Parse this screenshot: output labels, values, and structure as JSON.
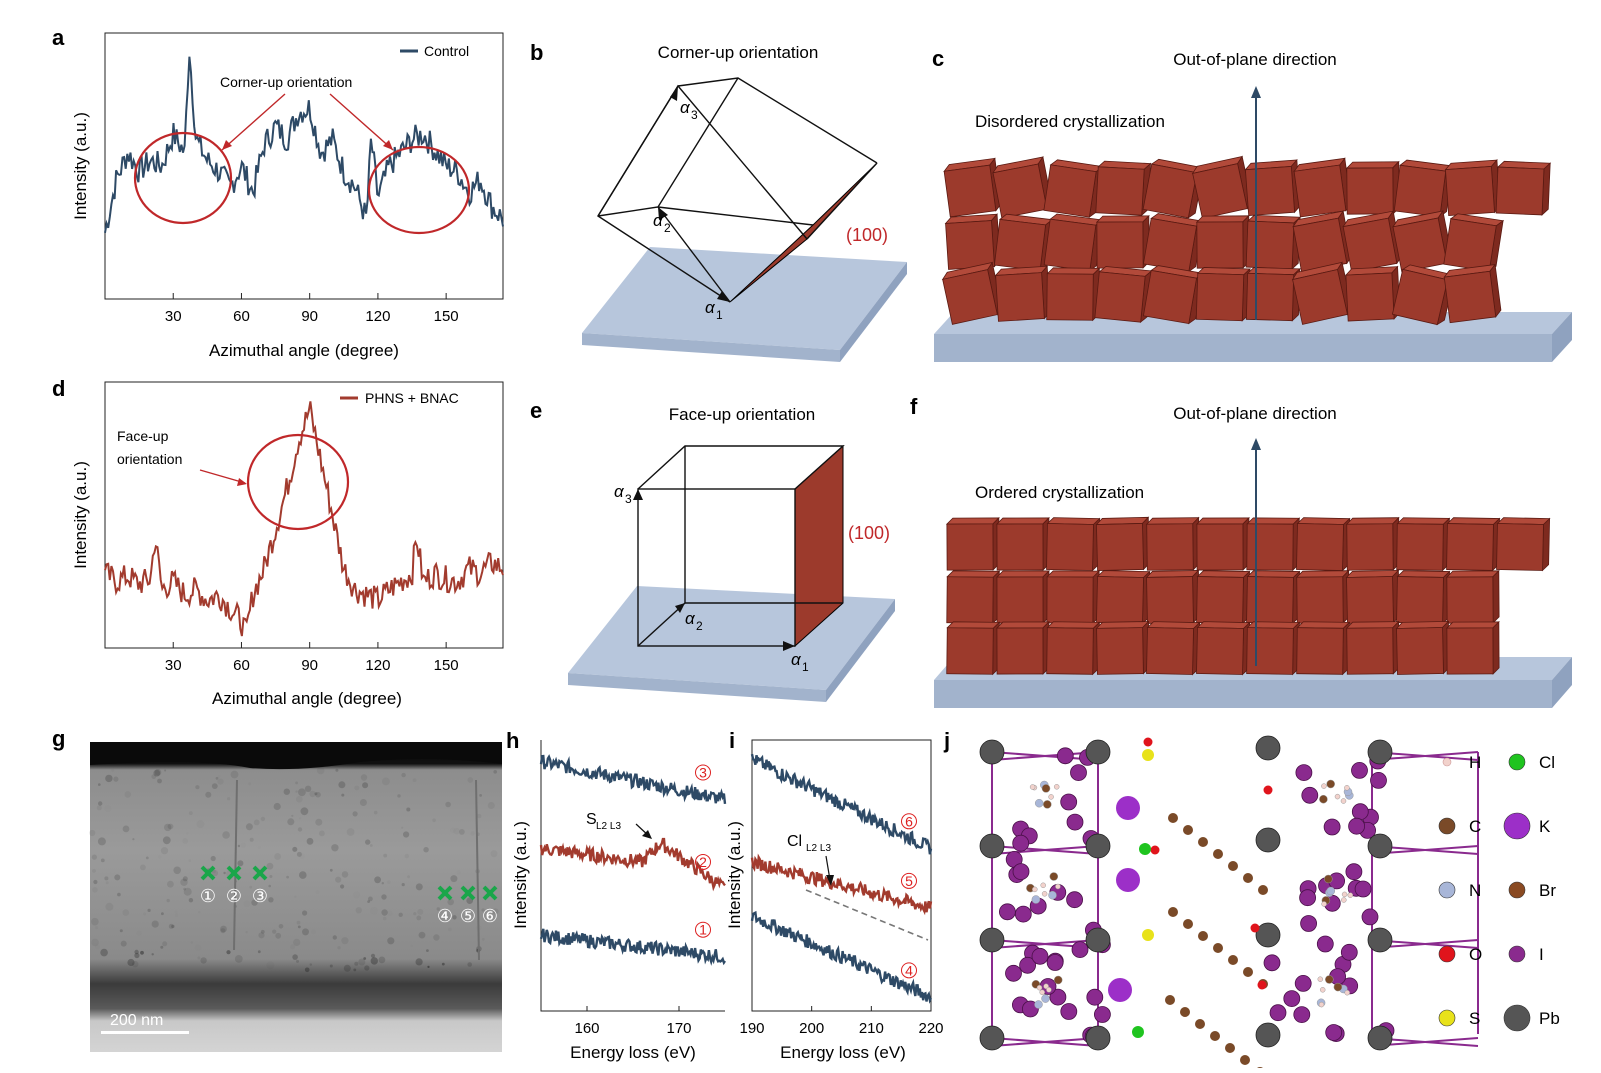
{
  "panels": {
    "a": "a",
    "b": "b",
    "c": "c",
    "d": "d",
    "e": "e",
    "f": "f",
    "g": "g",
    "h": "h",
    "i": "i",
    "j": "j"
  },
  "colors": {
    "control": "#2e4a66",
    "treated": "#a23b2e",
    "crystal": "#9c3a2c",
    "substrate": "#b7c6dc",
    "green_marker": "#1aa64a",
    "red_circle": "#c0282a"
  },
  "chart_data": [
    {
      "id": "a",
      "type": "line",
      "xlabel": "Azimuthal angle (degree)",
      "ylabel": "Intensity (a.u.)",
      "xlim": [
        0,
        175
      ],
      "xticks": [
        30,
        60,
        90,
        120,
        150
      ],
      "series": [
        {
          "name": "Control",
          "color": "#2e4a66",
          "x": [
            0,
            5,
            10,
            15,
            20,
            25,
            30,
            35,
            37,
            40,
            45,
            50,
            55,
            60,
            65,
            70,
            75,
            80,
            85,
            90,
            95,
            100,
            105,
            110,
            115,
            117,
            120,
            125,
            130,
            135,
            140,
            145,
            150,
            155,
            160,
            165,
            170,
            175
          ],
          "y": [
            0.25,
            0.45,
            0.55,
            0.48,
            0.52,
            0.5,
            0.62,
            0.55,
            0.95,
            0.6,
            0.52,
            0.48,
            0.42,
            0.5,
            0.4,
            0.58,
            0.65,
            0.6,
            0.7,
            0.72,
            0.55,
            0.6,
            0.48,
            0.42,
            0.3,
            0.6,
            0.38,
            0.5,
            0.55,
            0.6,
            0.62,
            0.56,
            0.5,
            0.48,
            0.4,
            0.45,
            0.35,
            0.3
          ]
        }
      ],
      "annotations": [
        "Corner-up orientation"
      ]
    },
    {
      "id": "d",
      "type": "line",
      "xlabel": "Azimuthal angle (degree)",
      "ylabel": "Intensity (a.u.)",
      "xlim": [
        0,
        175
      ],
      "xticks": [
        30,
        60,
        90,
        120,
        150
      ],
      "series": [
        {
          "name": "PHNS + BNAC",
          "color": "#a23b2e",
          "x": [
            0,
            5,
            10,
            15,
            20,
            22,
            25,
            30,
            35,
            40,
            45,
            50,
            55,
            60,
            62,
            65,
            70,
            75,
            80,
            85,
            88,
            90,
            92,
            95,
            100,
            105,
            110,
            115,
            120,
            125,
            130,
            135,
            137,
            140,
            145,
            150,
            155,
            160,
            165,
            170,
            175
          ],
          "y": [
            0.28,
            0.25,
            0.27,
            0.24,
            0.26,
            0.42,
            0.22,
            0.25,
            0.2,
            0.22,
            0.18,
            0.2,
            0.15,
            0.1,
            0.05,
            0.2,
            0.3,
            0.45,
            0.6,
            0.78,
            0.85,
            0.9,
            0.82,
            0.7,
            0.5,
            0.3,
            0.22,
            0.2,
            0.18,
            0.22,
            0.25,
            0.28,
            0.42,
            0.25,
            0.28,
            0.26,
            0.25,
            0.3,
            0.28,
            0.32,
            0.3
          ]
        }
      ],
      "annotations": [
        "Face-up",
        "orientation"
      ]
    },
    {
      "id": "h",
      "type": "line",
      "xlabel": "Energy loss (eV)",
      "ylabel": "Intensity (a.u.)",
      "xlim": [
        155,
        175
      ],
      "xticks": [
        160,
        170
      ],
      "series": [
        {
          "name": "③",
          "x": [
            155,
            175
          ],
          "y": [
            0.92,
            0.78
          ]
        },
        {
          "name": "②",
          "x": [
            155,
            166,
            168,
            175
          ],
          "y": [
            0.6,
            0.55,
            0.62,
            0.45
          ]
        },
        {
          "name": "①",
          "x": [
            155,
            175
          ],
          "y": [
            0.28,
            0.2
          ]
        }
      ],
      "annotations": [
        "S",
        "L2 L3"
      ]
    },
    {
      "id": "i",
      "type": "line",
      "xlabel": "Energy loss (eV)",
      "ylabel": "Intensity (a.u.)",
      "xlim": [
        190,
        220
      ],
      "xticks": [
        190,
        200,
        210,
        220
      ],
      "series": [
        {
          "name": "⑥",
          "x": [
            190,
            220
          ],
          "y": [
            0.93,
            0.6
          ]
        },
        {
          "name": "⑤",
          "x": [
            190,
            220
          ],
          "y": [
            0.55,
            0.38
          ]
        },
        {
          "name": "④",
          "x": [
            190,
            220
          ],
          "y": [
            0.35,
            0.05
          ]
        }
      ],
      "annotations": [
        "Cl",
        "L2 L3"
      ]
    }
  ],
  "panel_b": {
    "title": "Corner-up orientation",
    "plane": "(100)",
    "a1": "α",
    "a1_sub": "1",
    "a2": "α",
    "a2_sub": "2",
    "a3": "α",
    "a3_sub": "3"
  },
  "panel_c": {
    "title": "Out-of-plane direction",
    "label": "Disordered crystallization"
  },
  "panel_e": {
    "title": "Face-up orientation",
    "plane": "(100)",
    "a1": "α",
    "a1_sub": "1",
    "a2": "α",
    "a2_sub": "2",
    "a3": "α",
    "a3_sub": "3"
  },
  "panel_f": {
    "title": "Out-of-plane direction",
    "label": "Ordered crystallization"
  },
  "panel_g": {
    "scalebar": "200 nm",
    "markers_left": [
      "①",
      "②",
      "③"
    ],
    "markers_right": [
      "④",
      "⑤",
      "⑥"
    ]
  },
  "panel_j": {
    "legend": [
      {
        "symbol": "H",
        "color": "#f2d2cc"
      },
      {
        "symbol": "Cl",
        "color": "#1fc41f"
      },
      {
        "symbol": "C",
        "color": "#7a4a28"
      },
      {
        "symbol": "K",
        "color": "#9c2fc8"
      },
      {
        "symbol": "N",
        "color": "#a8b6d8"
      },
      {
        "symbol": "Br",
        "color": "#8a4a22"
      },
      {
        "symbol": "O",
        "color": "#e0141c"
      },
      {
        "symbol": "I",
        "color": "#8a2a8e"
      },
      {
        "symbol": "S",
        "color": "#e8e21a"
      },
      {
        "symbol": "Pb",
        "color": "#555555"
      }
    ]
  }
}
